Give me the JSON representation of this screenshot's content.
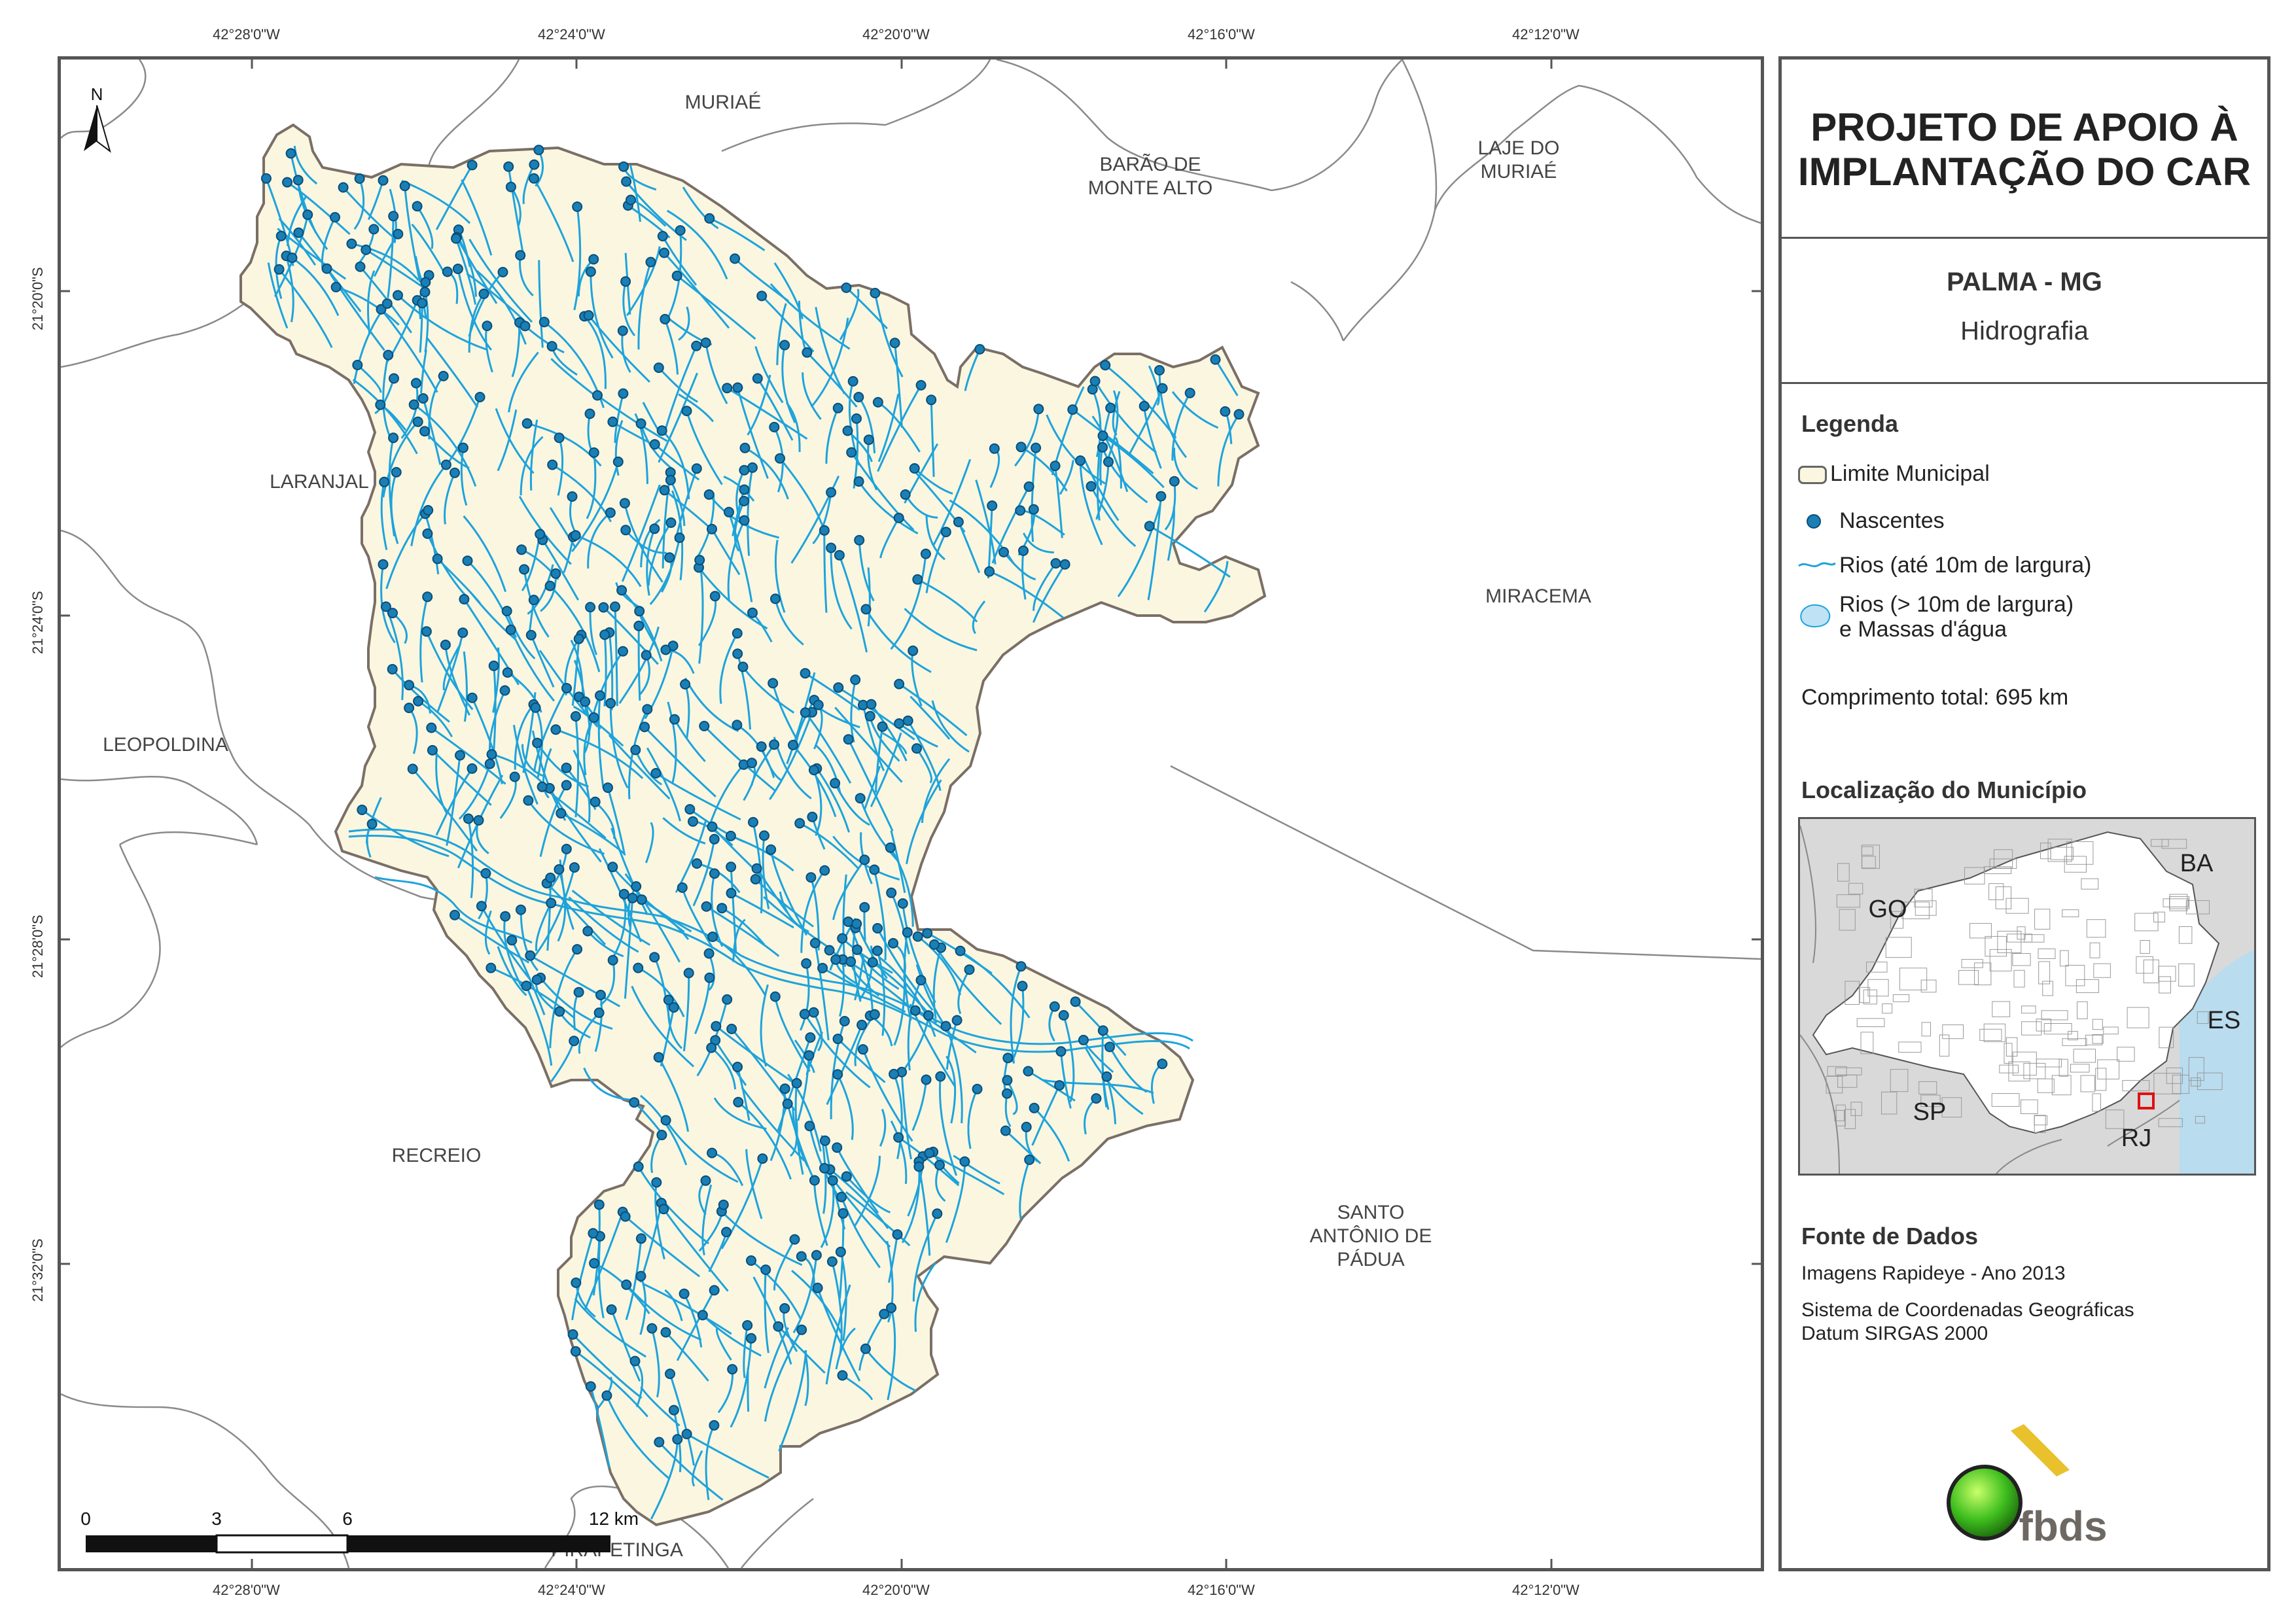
{
  "map": {
    "north_label": "N",
    "neighbors": {
      "muriae": "MURIAÉ",
      "barao": "BARÃO DE\nMONTE ALTO",
      "laje": "LAJE DO\nMURIAÉ",
      "laranjal": "LARANJAL",
      "miracema": "MIRACEMA",
      "leopoldina": "LEOPOLDINA",
      "recreio": "RECREIO",
      "santo": "SANTO\nANTÔNIO DE\nPÁDUA",
      "pirapetinga": "PIRAPETINGA"
    },
    "lon_labels": [
      "42°28'0\"W",
      "42°24'0\"W",
      "42°20'0\"W",
      "42°16'0\"W",
      "42°12'0\"W"
    ],
    "lat_labels": [
      "21°20'0\"S",
      "21°24'0\"S",
      "21°28'0\"S",
      "21°32'0\"S"
    ],
    "scale": {
      "labels": [
        "0",
        "3",
        "6",
        "12 km"
      ]
    },
    "colors": {
      "municipality_fill": "#fbf6e0",
      "municipality_border": "#7a6f66",
      "river": "#1ea3db",
      "spring": "#1a7fb5",
      "boundary": "#8a8a8a"
    }
  },
  "panel": {
    "title": "PROJETO DE APOIO À\nIMPLANTAÇÃO DO CAR",
    "municipality": "PALMA - MG",
    "theme": "Hidrografia",
    "legend": {
      "heading": "Legenda",
      "items": [
        "Limite Municipal",
        "Nascentes",
        "Rios (até 10m de largura)",
        "Rios (> 10m de largura)\ne Massas d'água"
      ]
    },
    "total_length": "Comprimento total:  695 km",
    "location": {
      "heading": "Localização do Município",
      "states": [
        "BA",
        "GO",
        "ES",
        "SP",
        "RJ"
      ]
    },
    "source": {
      "heading": "Fonte de Dados",
      "images": "Imagens Rapideye - Ano 2013",
      "crs": "Sistema de Coordenadas Geográficas\nDatum SIRGAS 2000"
    },
    "logo_text": "fbds"
  }
}
